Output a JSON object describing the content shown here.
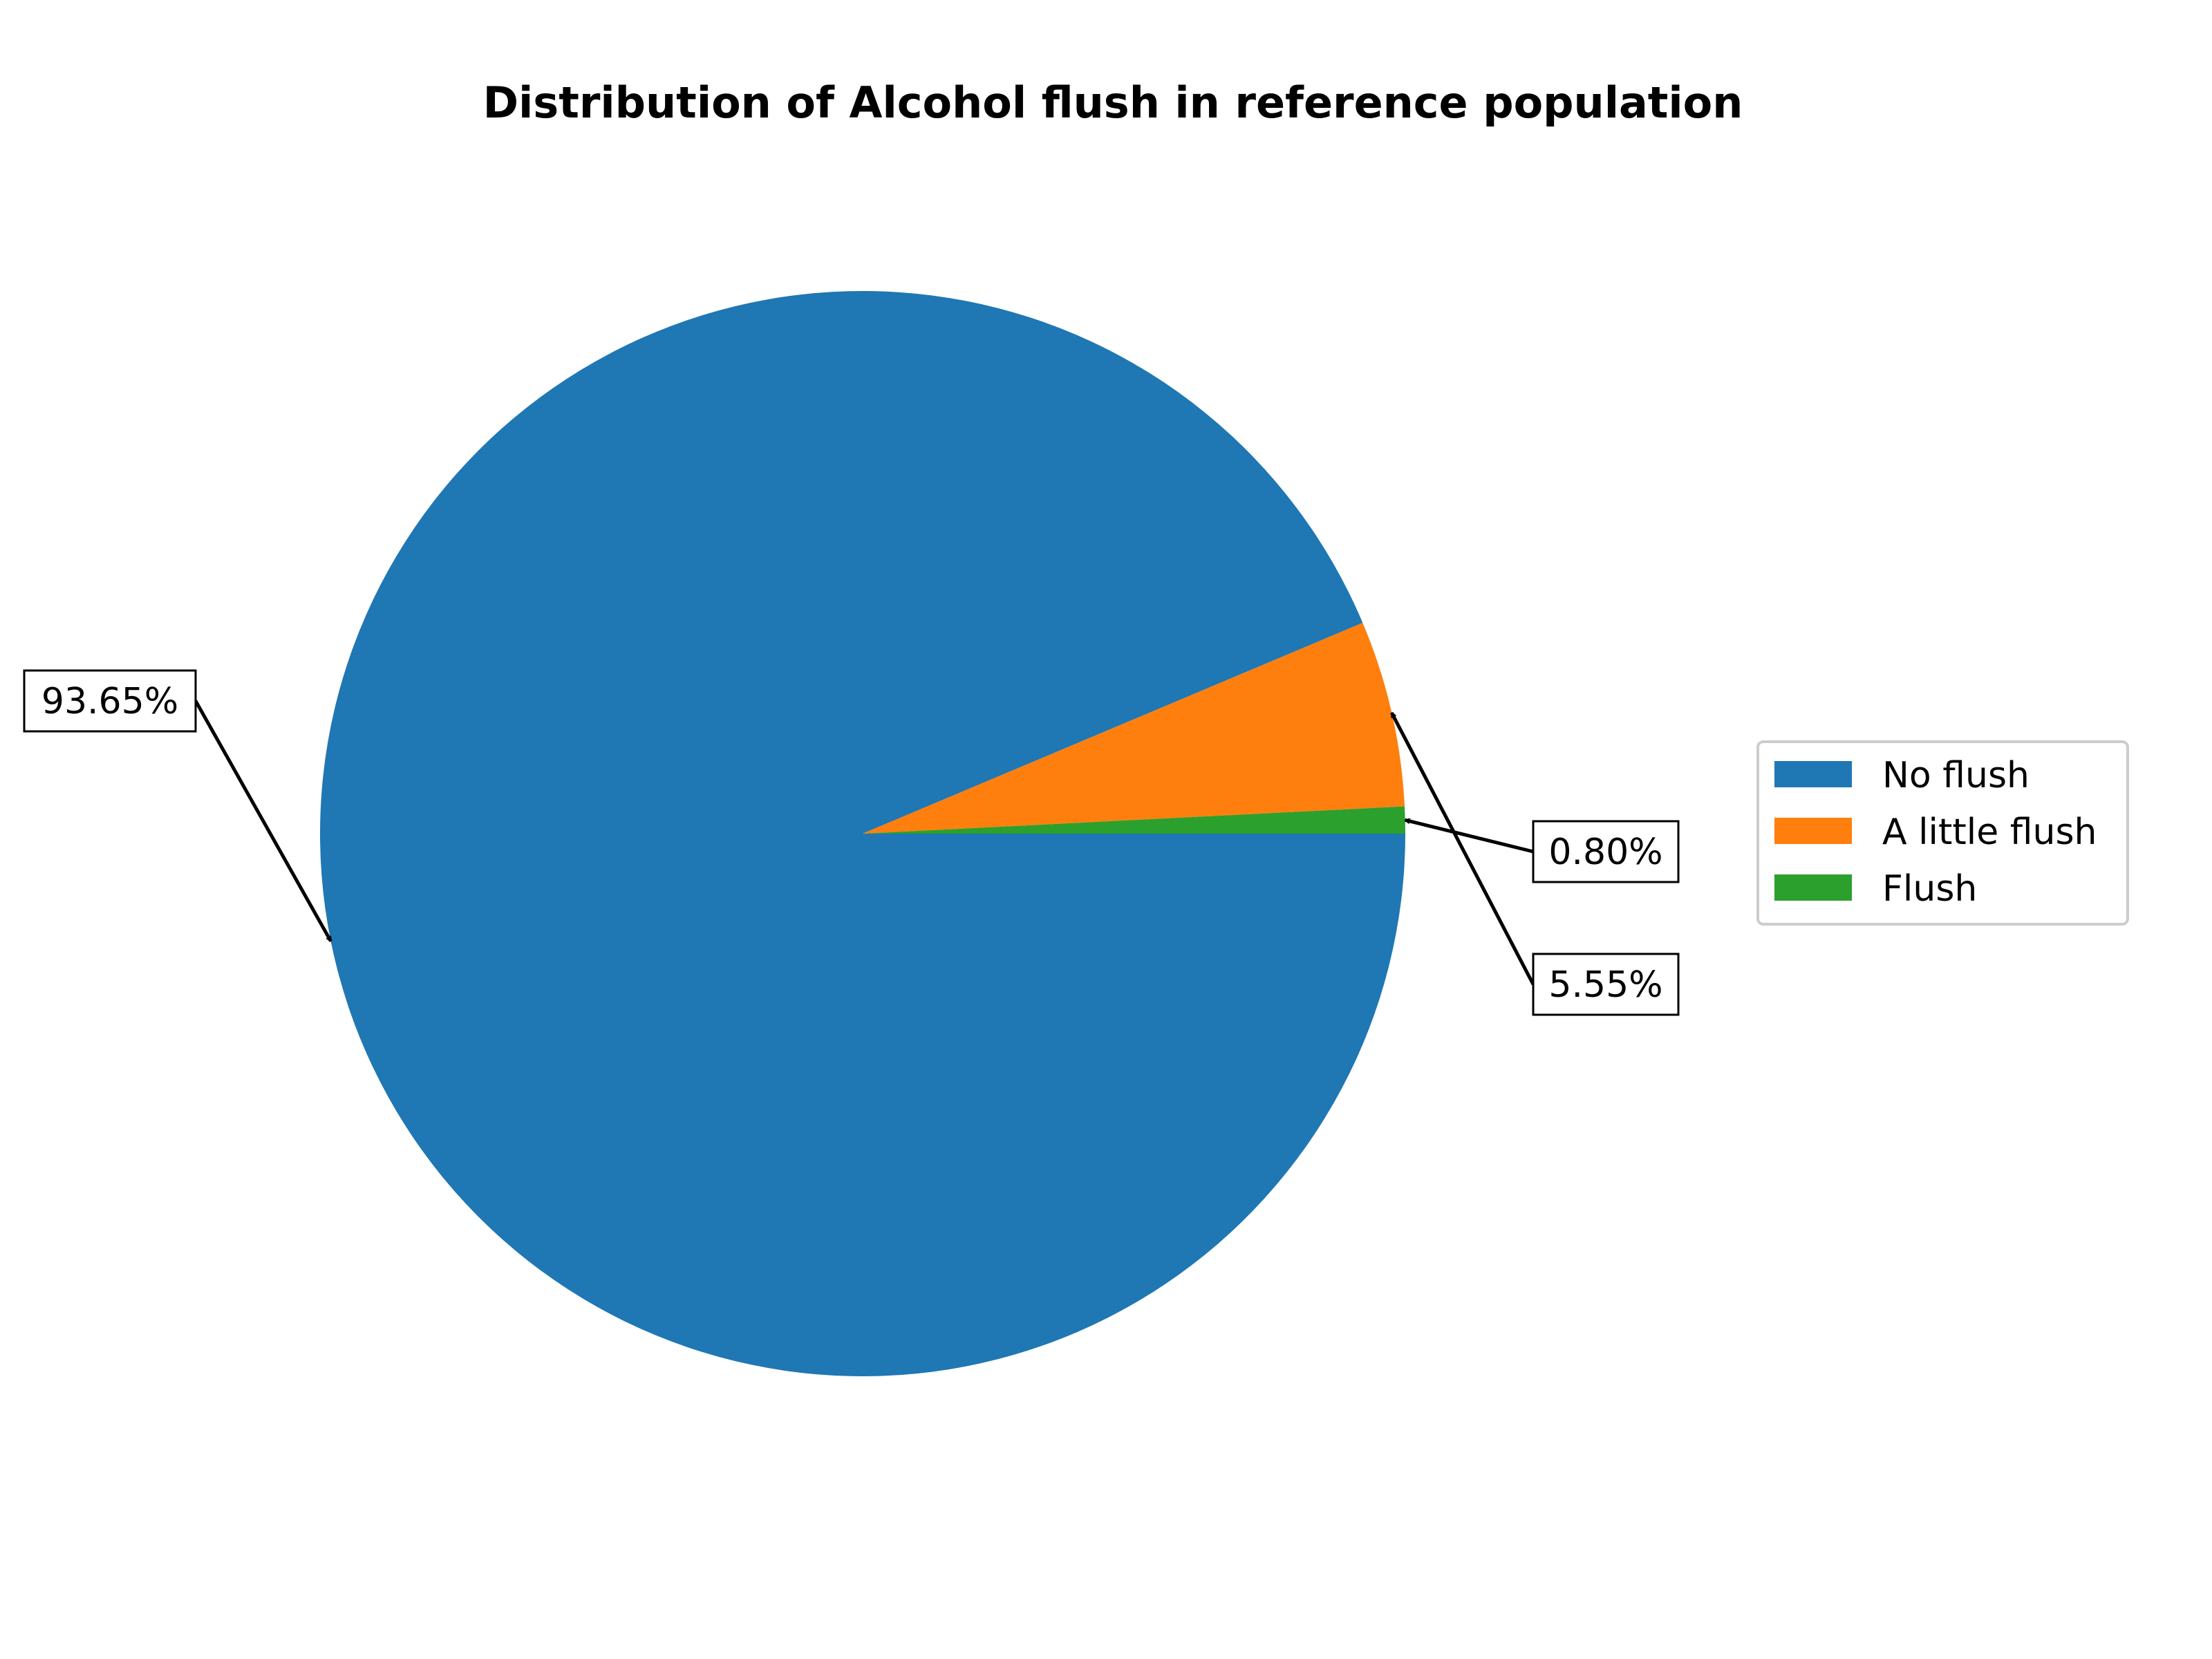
{
  "chart_data": {
    "type": "pie",
    "title": "Distribution of Alcohol flush in reference population",
    "categories": [
      "No flush",
      "A little flush",
      "Flush"
    ],
    "values": [
      93.65,
      5.55,
      0.8
    ],
    "labels": [
      "93.65%",
      "5.55%",
      "0.80%"
    ],
    "colors": [
      "#1f77b4",
      "#ff7f0e",
      "#2ca02c"
    ],
    "start_angle_deg": 0,
    "direction": "clockwise",
    "legend": {
      "placement": "right",
      "entries": [
        "No flush",
        "A little flush",
        "Flush"
      ]
    }
  }
}
